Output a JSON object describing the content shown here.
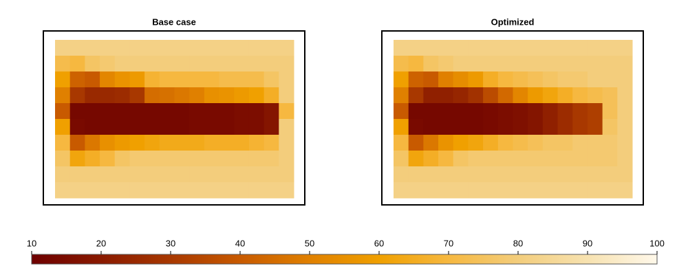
{
  "chart_data": [
    {
      "type": "heatmap",
      "title": "Base case",
      "z": [
        [
          82,
          82,
          82,
          82,
          82,
          82,
          82,
          82,
          82,
          82,
          82,
          82,
          82,
          82,
          82,
          82
        ],
        [
          72,
          70,
          76,
          78,
          80,
          80,
          80,
          80,
          80,
          80,
          80,
          80,
          80,
          80,
          80,
          80
        ],
        [
          60,
          42,
          40,
          52,
          56,
          58,
          68,
          70,
          70,
          70,
          70,
          72,
          72,
          72,
          76,
          80
        ],
        [
          50,
          30,
          25,
          25,
          26,
          30,
          45,
          46,
          48,
          50,
          55,
          56,
          58,
          60,
          66,
          80
        ],
        [
          40,
          13,
          13,
          13,
          13,
          13,
          13,
          13,
          13,
          14,
          14,
          14,
          15,
          15,
          18,
          70
        ],
        [
          60,
          14,
          13,
          13,
          13,
          13,
          13,
          13,
          13,
          14,
          14,
          14,
          15,
          15,
          18,
          80
        ],
        [
          70,
          40,
          48,
          55,
          58,
          60,
          62,
          64,
          64,
          64,
          66,
          66,
          66,
          68,
          70,
          80
        ],
        [
          76,
          62,
          66,
          70,
          76,
          78,
          78,
          78,
          78,
          78,
          78,
          78,
          78,
          78,
          78,
          80
        ],
        [
          80,
          80,
          80,
          80,
          80,
          80,
          80,
          80,
          80,
          80,
          80,
          80,
          80,
          80,
          80,
          80
        ],
        [
          82,
          82,
          82,
          82,
          82,
          82,
          82,
          82,
          82,
          82,
          82,
          82,
          82,
          82,
          82,
          82
        ]
      ]
    },
    {
      "type": "heatmap",
      "title": "Optimized",
      "z": [
        [
          82,
          82,
          82,
          82,
          82,
          82,
          82,
          82,
          82,
          82,
          82,
          82,
          82,
          82,
          82,
          82
        ],
        [
          72,
          70,
          76,
          78,
          80,
          80,
          80,
          80,
          80,
          80,
          80,
          80,
          80,
          80,
          80,
          80
        ],
        [
          60,
          42,
          40,
          50,
          54,
          58,
          66,
          70,
          72,
          74,
          76,
          78,
          78,
          80,
          80,
          80
        ],
        [
          50,
          30,
          22,
          22,
          24,
          28,
          36,
          44,
          52,
          58,
          62,
          66,
          70,
          72,
          74,
          80
        ],
        [
          40,
          13,
          13,
          13,
          13,
          13,
          14,
          15,
          16,
          18,
          22,
          26,
          30,
          32,
          74,
          80
        ],
        [
          60,
          14,
          13,
          13,
          13,
          13,
          14,
          15,
          16,
          18,
          22,
          26,
          30,
          32,
          76,
          80
        ],
        [
          70,
          40,
          48,
          56,
          60,
          62,
          66,
          70,
          72,
          74,
          76,
          76,
          78,
          78,
          78,
          80
        ],
        [
          76,
          62,
          66,
          70,
          76,
          78,
          78,
          78,
          78,
          78,
          78,
          78,
          78,
          78,
          78,
          80
        ],
        [
          80,
          80,
          80,
          80,
          80,
          80,
          80,
          80,
          80,
          80,
          80,
          80,
          80,
          80,
          80,
          80
        ],
        [
          82,
          82,
          82,
          82,
          82,
          82,
          82,
          82,
          82,
          82,
          82,
          82,
          82,
          82,
          82,
          82
        ]
      ]
    },
    {
      "type": "colorbar",
      "zlim": [
        10,
        100
      ],
      "ticks": [
        10,
        20,
        30,
        40,
        50,
        60,
        70,
        80,
        90,
        100
      ],
      "colors": [
        "#6e0000",
        "#8a1a00",
        "#a83800",
        "#c85a00",
        "#e08000",
        "#f0a000",
        "#f6b840",
        "#f3cd7c",
        "#f7e2b0",
        "#fff8ea"
      ]
    }
  ]
}
